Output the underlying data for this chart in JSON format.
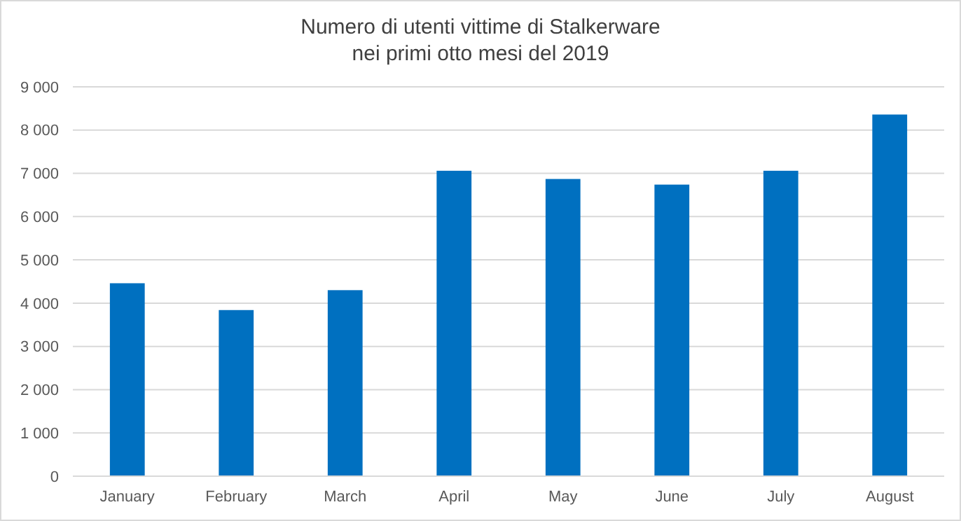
{
  "chart_data": {
    "type": "bar",
    "title": "Numero di utenti  vittime di Stalkerware\nnei primi otto mesi del 2019",
    "categories": [
      "January",
      "February",
      "March",
      "April",
      "May",
      "June",
      "July",
      "August"
    ],
    "values": [
      4460,
      3840,
      4300,
      7060,
      6870,
      6740,
      7060,
      8360
    ],
    "color": "#0070c0",
    "ylim": [
      0,
      9000
    ],
    "yticks": [
      0,
      {
        "value": 1000,
        "label": "1 000"
      },
      {
        "value": 2000,
        "label": "2 000"
      },
      {
        "value": 3000,
        "label": "3 000"
      },
      {
        "value": 4000,
        "label": "4 000"
      },
      {
        "value": 5000,
        "label": "5 000"
      },
      {
        "value": 6000,
        "label": "6 000"
      },
      {
        "value": 7000,
        "label": "7 000"
      },
      {
        "value": 8000,
        "label": "8 000"
      },
      {
        "value": 9000,
        "label": "9 000"
      }
    ],
    "grid": "y"
  }
}
